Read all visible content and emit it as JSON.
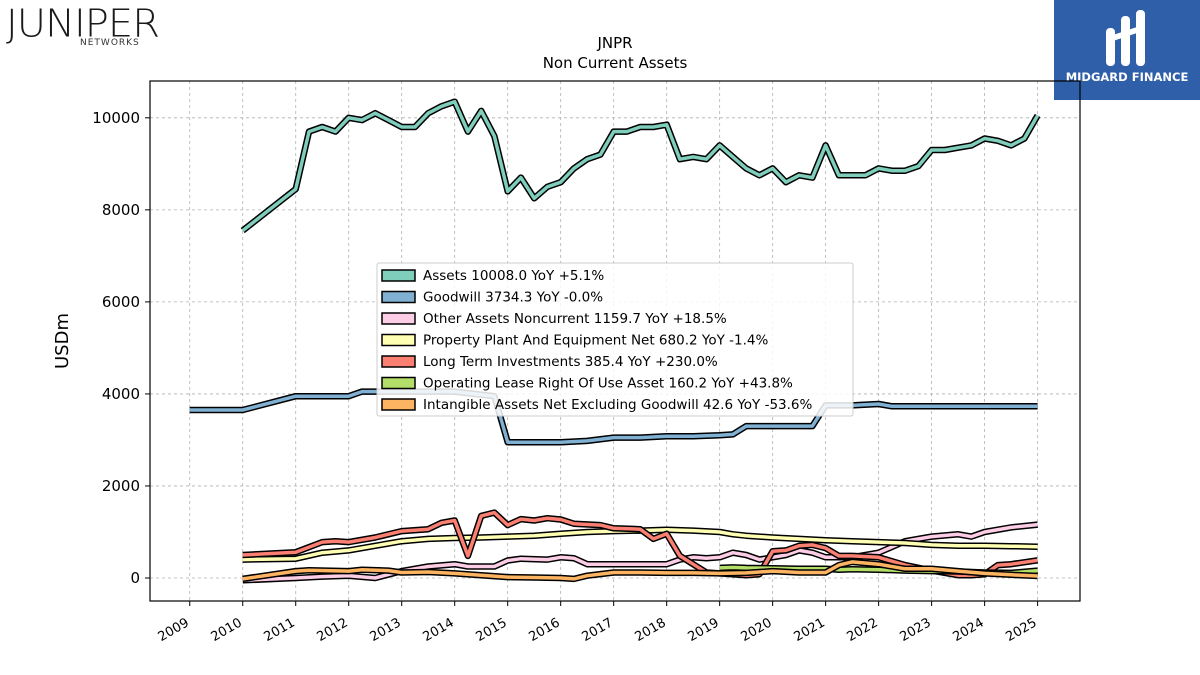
{
  "logos": {
    "left_brand": "JUNIPER",
    "left_sub": "NETWORKS",
    "right_brand": "MIDGARD FINANCE",
    "right_color": "#2f5fa8"
  },
  "chart_data": {
    "type": "line",
    "title": "JNPR",
    "subtitle": "Non Current  Assets",
    "ylabel": "USDm",
    "xlabel": "",
    "xlim": [
      2008.25,
      2025.8
    ],
    "ylim": [
      -500,
      10800
    ],
    "yticks": [
      0,
      2000,
      4000,
      6000,
      8000,
      10000
    ],
    "xticks": [
      2009,
      2010,
      2011,
      2012,
      2013,
      2014,
      2015,
      2016,
      2017,
      2018,
      2019,
      2020,
      2021,
      2022,
      2023,
      2024,
      2025
    ],
    "grid": true,
    "legend_position": "center",
    "series": [
      {
        "name": "Assets  10008.0 YoY +5.1%",
        "color": "#7fcdbb",
        "x": [
          2010.0,
          2011.0,
          2011.25,
          2011.5,
          2011.75,
          2012.0,
          2012.25,
          2012.5,
          2012.75,
          2013.0,
          2013.25,
          2013.5,
          2013.75,
          2014.0,
          2014.25,
          2014.5,
          2014.75,
          2015.0,
          2015.25,
          2015.5,
          2015.75,
          2016.0,
          2016.25,
          2016.5,
          2016.75,
          2017.0,
          2017.25,
          2017.5,
          2017.75,
          2018.0,
          2018.25,
          2018.5,
          2018.75,
          2019.0,
          2019.25,
          2019.5,
          2019.75,
          2020.0,
          2020.25,
          2020.5,
          2020.75,
          2021.0,
          2021.25,
          2021.5,
          2021.75,
          2022.0,
          2022.25,
          2022.5,
          2022.75,
          2023.0,
          2023.25,
          2023.5,
          2023.75,
          2024.0,
          2024.25,
          2024.5,
          2024.75,
          2025.0
        ],
        "values": [
          7550,
          8450,
          9700,
          9800,
          9700,
          10000,
          9950,
          10100,
          9950,
          9800,
          9800,
          10100,
          10250,
          10350,
          9700,
          10150,
          9600,
          8400,
          8700,
          8250,
          8500,
          8600,
          8900,
          9100,
          9200,
          9700,
          9700,
          9800,
          9800,
          9850,
          9100,
          9150,
          9100,
          9400,
          9150,
          8900,
          8750,
          8900,
          8600,
          8750,
          8700,
          9400,
          8750,
          8750,
          8750,
          8900,
          8850,
          8850,
          8950,
          9300,
          9300,
          9350,
          9400,
          9550,
          9500,
          9400,
          9550,
          10050
        ]
      },
      {
        "name": "Goodwill  3734.3 YoY -0.0%",
        "color": "#80b1d3",
        "x": [
          2009.0,
          2010.0,
          2011.0,
          2012.0,
          2012.25,
          2012.5,
          2013.0,
          2014.0,
          2014.75,
          2015.0,
          2016.0,
          2016.5,
          2017.0,
          2017.5,
          2018.0,
          2018.5,
          2019.0,
          2019.25,
          2019.5,
          2020.0,
          2020.5,
          2020.75,
          2021.0,
          2021.5,
          2022.0,
          2022.25,
          2023.0,
          2024.0,
          2025.0
        ],
        "values": [
          3650,
          3650,
          3950,
          3950,
          4050,
          4050,
          4050,
          4050,
          3950,
          2950,
          2950,
          2980,
          3050,
          3050,
          3080,
          3080,
          3100,
          3120,
          3300,
          3300,
          3300,
          3300,
          3750,
          3750,
          3780,
          3730,
          3730,
          3730,
          3734
        ]
      },
      {
        "name": "Other Assets Noncurrent  1159.7 YoY +18.5%",
        "color": "#fccde5",
        "x": [
          2010.0,
          2011.0,
          2011.5,
          2012.0,
          2012.5,
          2013.0,
          2013.5,
          2014.0,
          2014.25,
          2014.5,
          2014.75,
          2015.0,
          2015.25,
          2015.75,
          2016.0,
          2016.25,
          2016.5,
          2017.0,
          2017.5,
          2018.0,
          2018.25,
          2018.5,
          2018.75,
          2019.0,
          2019.25,
          2019.5,
          2019.75,
          2020.0,
          2020.25,
          2020.5,
          2020.75,
          2021.0,
          2021.5,
          2022.0,
          2022.5,
          2023.0,
          2023.5,
          2023.75,
          2024.0,
          2024.5,
          2025.0
        ],
        "values": [
          -50,
          0,
          30,
          50,
          0,
          150,
          250,
          300,
          250,
          250,
          250,
          380,
          420,
          400,
          450,
          430,
          300,
          300,
          300,
          300,
          400,
          450,
          430,
          450,
          550,
          500,
          400,
          450,
          500,
          600,
          550,
          450,
          450,
          550,
          800,
          900,
          950,
          900,
          1000,
          1100,
          1160
        ]
      },
      {
        "name": "Property Plant And Equipment Net  680.2 YoY -1.4%",
        "color": "#ffffb3",
        "x": [
          2010.0,
          2011.0,
          2011.5,
          2012.0,
          2012.5,
          2013.0,
          2013.5,
          2014.0,
          2014.5,
          2015.0,
          2015.5,
          2016.0,
          2016.5,
          2017.0,
          2017.5,
          2018.0,
          2018.5,
          2019.0,
          2019.25,
          2019.5,
          2020.0,
          2020.5,
          2021.0,
          2021.5,
          2022.0,
          2022.5,
          2023.0,
          2023.5,
          2024.0,
          2024.5,
          2025.0
        ],
        "values": [
          400,
          420,
          550,
          600,
          700,
          800,
          850,
          870,
          880,
          900,
          920,
          960,
          1000,
          1020,
          1030,
          1050,
          1030,
          1000,
          950,
          920,
          880,
          850,
          820,
          800,
          780,
          760,
          720,
          700,
          700,
          690,
          680
        ]
      },
      {
        "name": "Long Term Investments  385.4 YoY +230.0%",
        "color": "#fb8072",
        "x": [
          2010.0,
          2011.0,
          2011.5,
          2011.75,
          2012.0,
          2012.5,
          2013.0,
          2013.5,
          2013.75,
          2014.0,
          2014.25,
          2014.5,
          2014.75,
          2015.0,
          2015.25,
          2015.5,
          2015.75,
          2016.0,
          2016.25,
          2016.75,
          2017.0,
          2017.5,
          2017.75,
          2018.0,
          2018.25,
          2018.5,
          2018.75,
          2019.0,
          2019.25,
          2019.5,
          2019.75,
          2020.0,
          2020.25,
          2020.5,
          2020.75,
          2021.0,
          2021.25,
          2021.5,
          2022.0,
          2022.5,
          2023.0,
          2023.5,
          2023.75,
          2024.0,
          2024.25,
          2024.5,
          2025.0
        ],
        "values": [
          500,
          560,
          780,
          800,
          780,
          880,
          1020,
          1060,
          1200,
          1250,
          480,
          1350,
          1420,
          1150,
          1280,
          1250,
          1300,
          1270,
          1180,
          1150,
          1080,
          1060,
          850,
          960,
          480,
          300,
          120,
          100,
          80,
          60,
          80,
          580,
          600,
          700,
          720,
          650,
          480,
          480,
          450,
          280,
          160,
          60,
          60,
          80,
          280,
          300,
          385
        ]
      },
      {
        "name": "Operating Lease Right Of Use Asset  160.2 YoY +43.8%",
        "color": "#b3de69",
        "x": [
          2019.0,
          2019.25,
          2019.5,
          2020.0,
          2020.5,
          2021.0,
          2021.25,
          2021.5,
          2022.0,
          2022.5,
          2023.0,
          2023.5,
          2024.0,
          2024.5,
          2025.0
        ],
        "values": [
          220,
          230,
          220,
          210,
          200,
          200,
          180,
          190,
          180,
          160,
          150,
          140,
          120,
          110,
          160
        ]
      },
      {
        "name": "Intangible Assets Net Excluding Goodwill  42.6 YoY -53.6%",
        "color": "#fdb462",
        "x": [
          2010.0,
          2011.0,
          2011.25,
          2012.0,
          2012.25,
          2012.75,
          2013.0,
          2013.5,
          2014.0,
          2014.5,
          2015.0,
          2015.5,
          2016.0,
          2016.25,
          2016.5,
          2017.0,
          2017.5,
          2018.0,
          2018.5,
          2019.0,
          2019.5,
          2020.0,
          2020.5,
          2021.0,
          2021.25,
          2021.5,
          2022.0,
          2022.5,
          2023.0,
          2023.5,
          2024.0,
          2024.5,
          2025.0
        ],
        "values": [
          -20,
          150,
          170,
          150,
          180,
          160,
          120,
          130,
          100,
          60,
          20,
          10,
          0,
          -20,
          50,
          120,
          120,
          110,
          110,
          100,
          110,
          150,
          120,
          120,
          280,
          350,
          300,
          200,
          200,
          150,
          100,
          70,
          43
        ]
      }
    ]
  }
}
